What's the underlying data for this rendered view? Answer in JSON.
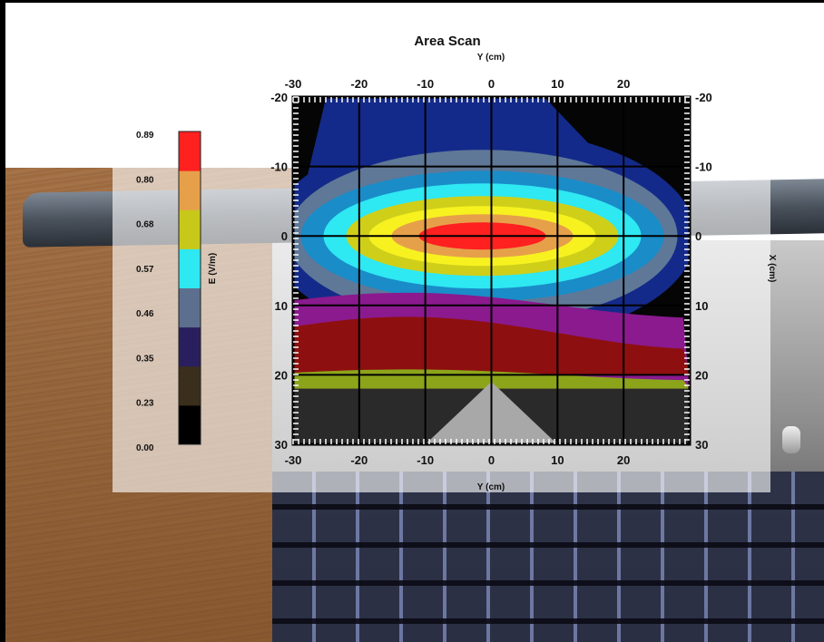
{
  "chart_data": {
    "type": "heatmap",
    "title": "Area Scan",
    "xlabel": "Y (cm)",
    "ylabel": "X (cm)",
    "x_top_ticks": [
      "-30",
      "-20",
      "-10",
      "0",
      "10",
      "20"
    ],
    "x_bottom_ticks": [
      "-30",
      "-20",
      "-10",
      "0",
      "10",
      "20"
    ],
    "y_left_ticks": [
      "-20",
      "-10",
      "0",
      "10",
      "20",
      "30"
    ],
    "y_right_ticks": [
      "-20",
      "-10",
      "0",
      "10",
      "20",
      "30"
    ],
    "xlim": [
      -30,
      30
    ],
    "ylim": [
      -20,
      30
    ],
    "grid": true,
    "colorbar": {
      "label": "E (V/m)",
      "ticks": [
        "0.89",
        "0.80",
        "0.68",
        "0.57",
        "0.46",
        "0.35",
        "0.23",
        "0.00"
      ],
      "colors": [
        "#000000",
        "#3a2e1c",
        "#2a1f5e",
        "#5d6f8f",
        "#2ee8f2",
        "#c8c81a",
        "#e6a04a",
        "#ff2020"
      ]
    }
  }
}
